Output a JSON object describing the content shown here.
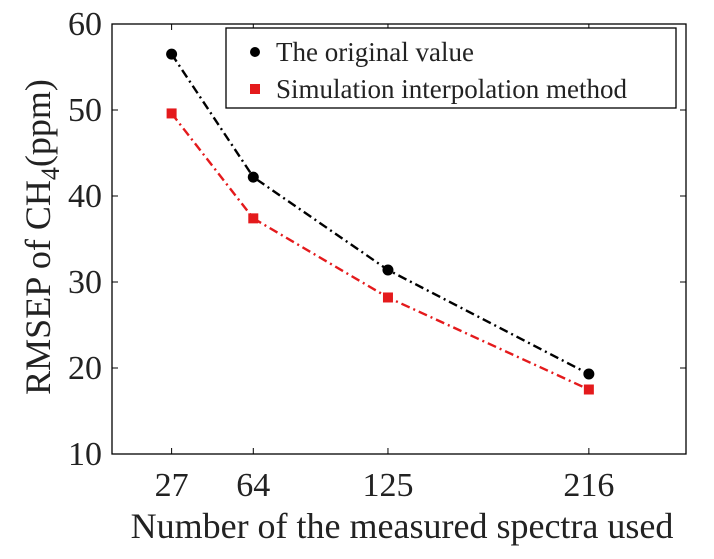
{
  "chart_data": {
    "type": "line",
    "title": "",
    "xlabel": "Number of the measured spectra used",
    "ylabel_main": "RMSEP of CH",
    "ylabel_subscript": "4",
    "ylabel_unit": "(ppm)",
    "xlim": [
      0,
      260
    ],
    "ylim": [
      10,
      60
    ],
    "xticks": [
      27,
      64,
      125,
      216
    ],
    "yticks": [
      10,
      20,
      30,
      40,
      50,
      60
    ],
    "grid": false,
    "legend_position": "top-right",
    "series": [
      {
        "name": "The original value",
        "color": "#000000",
        "marker": "circle",
        "line_style": "dash-dot",
        "x": [
          27,
          64,
          125,
          216
        ],
        "values": [
          56.5,
          42.2,
          31.4,
          19.3
        ]
      },
      {
        "name": "Simulation interpolation method",
        "color": "#e41a1c",
        "marker": "square",
        "line_style": "dash-dot",
        "x": [
          27,
          64,
          125,
          216
        ],
        "values": [
          49.6,
          37.4,
          28.2,
          17.5
        ]
      }
    ]
  }
}
